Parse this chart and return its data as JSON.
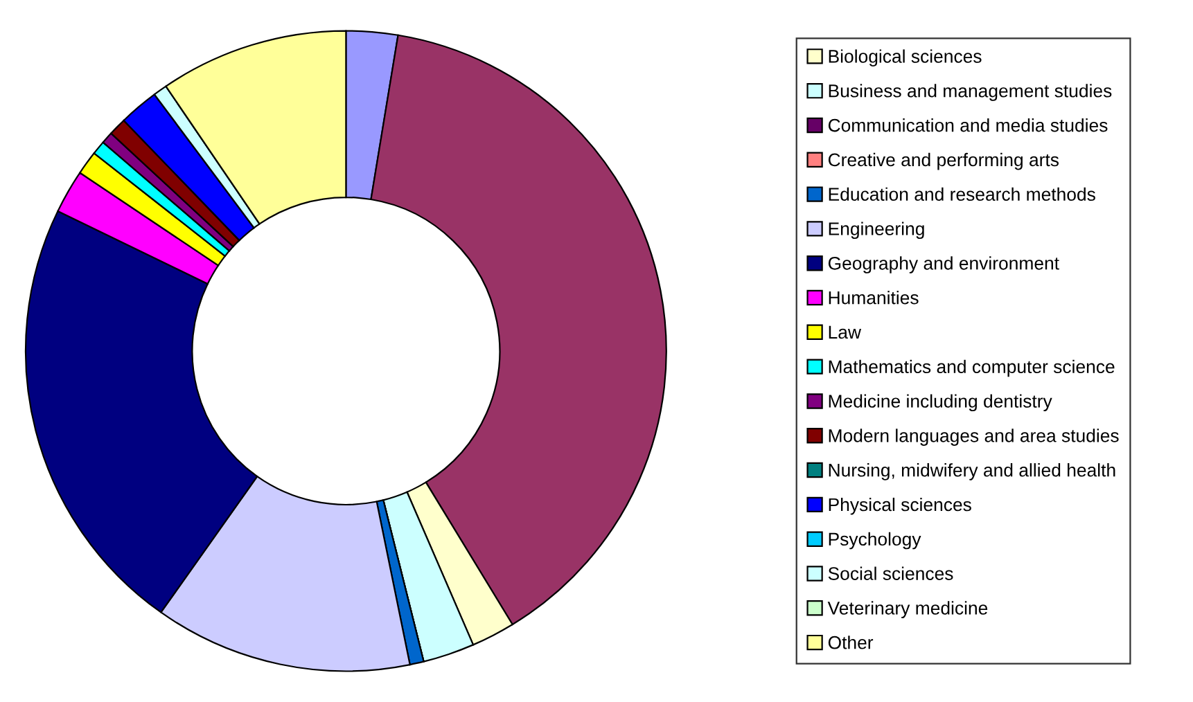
{
  "chart_data": {
    "type": "donut",
    "categories": [
      null,
      null,
      "Biological sciences",
      "Business and management studies",
      "Communication and media studies",
      "Creative and performing arts",
      "Education and research methods",
      "Engineering",
      "Geography and environment",
      "Humanities",
      "Law",
      "Mathematics and computer science",
      "Medicine including dentistry",
      "Modern languages and area studies",
      "Nursing, midwifery and allied health",
      "Physical sciences",
      "Psychology",
      "Social sciences",
      "Veterinary medicine",
      "Other"
    ],
    "values": [
      2.6,
      38.7,
      2.2,
      2.6,
      0,
      0,
      0.7,
      13.0,
      22.4,
      2.2,
      1.2,
      0.7,
      0.6,
      0.9,
      0,
      2.0,
      0,
      0.7,
      0,
      9.5
    ],
    "colors": [
      "#9999ff",
      "#993366",
      "#ffffcc",
      "#ccffff",
      "#660066",
      "#ff8080",
      "#0066cc",
      "#ccccff",
      "#000080",
      "#ff00ff",
      "#ffff00",
      "#00ffff",
      "#800080",
      "#800000",
      "#008080",
      "#0000ff",
      "#00ccff",
      "#ccffff",
      "#ccffcc",
      "#ffff99"
    ],
    "legend": "right"
  }
}
